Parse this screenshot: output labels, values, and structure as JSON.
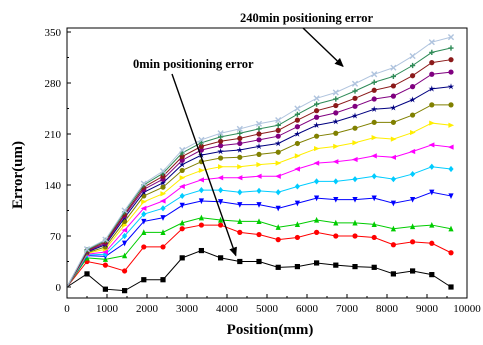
{
  "chart_data": {
    "type": "line",
    "title": "",
    "xlabel": "Position(mm)",
    "ylabel": "Error(um)",
    "xlim": [
      0,
      10000
    ],
    "ylim": [
      -10,
      355
    ],
    "xticks": [
      0,
      1000,
      2000,
      3000,
      4000,
      5000,
      6000,
      7000,
      8000,
      9000,
      10000
    ],
    "yticks": [
      0,
      70,
      140,
      210,
      280,
      350
    ],
    "grid": false,
    "legend": "none",
    "x": [
      0,
      500,
      960,
      1440,
      1920,
      2400,
      2880,
      3360,
      3840,
      4320,
      4800,
      5280,
      5760,
      6240,
      6720,
      7200,
      7680,
      8160,
      8640,
      9120,
      9600
    ],
    "series": [
      {
        "color": "#000000",
        "marker": "square",
        "values": [
          0,
          18,
          -3,
          -5,
          10,
          10,
          40,
          50,
          40,
          35,
          35,
          27,
          28,
          33,
          30,
          28,
          27,
          18,
          22,
          17,
          0
        ]
      },
      {
        "color": "#ff0000",
        "marker": "circle",
        "values": [
          0,
          35,
          30,
          22,
          55,
          55,
          80,
          85,
          85,
          75,
          72,
          65,
          68,
          75,
          70,
          70,
          68,
          58,
          62,
          60,
          47
        ]
      },
      {
        "color": "#00cc00",
        "marker": "triangle-up",
        "values": [
          0,
          40,
          38,
          43,
          75,
          75,
          88,
          95,
          92,
          90,
          90,
          82,
          86,
          92,
          88,
          88,
          86,
          80,
          83,
          85,
          80
        ]
      },
      {
        "color": "#0000ff",
        "marker": "triangle-down",
        "values": [
          0,
          43,
          42,
          60,
          90,
          95,
          112,
          118,
          117,
          113,
          113,
          108,
          115,
          122,
          120,
          120,
          122,
          115,
          120,
          130,
          125
        ]
      },
      {
        "color": "#00ccff",
        "marker": "diamond",
        "values": [
          0,
          44,
          45,
          70,
          100,
          108,
          125,
          133,
          133,
          130,
          132,
          130,
          138,
          145,
          145,
          148,
          152,
          148,
          155,
          165,
          162
        ]
      },
      {
        "color": "#ff00ff",
        "marker": "triangle-left",
        "values": [
          0,
          45,
          48,
          78,
          108,
          118,
          138,
          147,
          150,
          150,
          152,
          152,
          162,
          170,
          172,
          175,
          180,
          178,
          186,
          195,
          192
        ]
      },
      {
        "color": "#ffee00",
        "marker": "triangle-right",
        "values": [
          0,
          46,
          52,
          85,
          117,
          128,
          150,
          160,
          165,
          165,
          168,
          170,
          180,
          190,
          193,
          198,
          205,
          203,
          212,
          225,
          222
        ]
      },
      {
        "color": "#808000",
        "marker": "circle",
        "values": [
          0,
          47,
          55,
          90,
          125,
          137,
          160,
          172,
          177,
          178,
          182,
          185,
          197,
          207,
          211,
          218,
          226,
          226,
          236,
          250,
          250
        ]
      },
      {
        "color": "#000080",
        "marker": "star",
        "values": [
          0,
          48,
          58,
          95,
          130,
          143,
          168,
          181,
          186,
          188,
          193,
          197,
          210,
          222,
          227,
          235,
          244,
          246,
          257,
          272,
          275
        ]
      },
      {
        "color": "#800080",
        "marker": "circle",
        "values": [
          0,
          49,
          60,
          98,
          134,
          148,
          174,
          188,
          194,
          197,
          202,
          207,
          220,
          233,
          239,
          248,
          258,
          262,
          275,
          292,
          295
        ]
      },
      {
        "color": "#8b1a1a",
        "marker": "circle",
        "values": [
          0,
          50,
          62,
          100,
          137,
          152,
          179,
          193,
          200,
          204,
          210,
          215,
          229,
          242,
          249,
          259,
          270,
          276,
          290,
          308,
          312
        ]
      },
      {
        "color": "#2e8b57",
        "marker": "plus",
        "values": [
          0,
          51,
          64,
          103,
          140,
          156,
          184,
          198,
          206,
          211,
          217,
          222,
          237,
          251,
          258,
          269,
          281,
          289,
          304,
          322,
          328
        ]
      },
      {
        "color": "#b0c4de",
        "marker": "cross",
        "values": [
          0,
          52,
          65,
          105,
          142,
          159,
          188,
          202,
          211,
          217,
          224,
          229,
          245,
          259,
          267,
          279,
          292,
          301,
          317,
          336,
          343
        ]
      }
    ],
    "annotations": [
      {
        "text": "240min positioning error",
        "points_to_x": 7200,
        "points_to_y": 285
      },
      {
        "text": "0min positioning error",
        "points_to_x": 4320,
        "points_to_y": 35
      }
    ]
  }
}
